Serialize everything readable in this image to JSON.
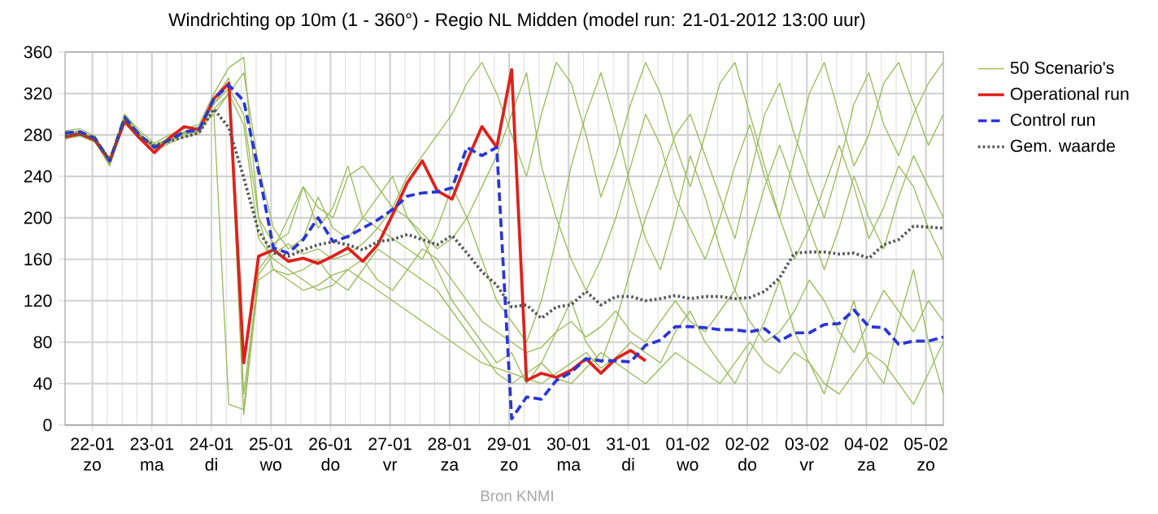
{
  "chart_data": {
    "type": "line",
    "title": "Windrichting op 10m (1 - 360°) - Regio NL Midden (model run: 21-01-2012 13:00 uur)",
    "annotations": [
      "Bron KNMI"
    ],
    "legend": "right",
    "grid": true,
    "marker": "none",
    "x": [
      "2012-01-21T13:00",
      "2012-01-21T19:00",
      "2012-01-22T01:00",
      "2012-01-22T07:00",
      "2012-01-22T13:00",
      "2012-01-22T19:00",
      "2012-01-23T01:00",
      "2012-01-23T07:00",
      "2012-01-23T13:00",
      "2012-01-23T19:00",
      "2012-01-24T01:00",
      "2012-01-24T07:00",
      "2012-01-24T13:00",
      "2012-01-24T19:00",
      "2012-01-25T01:00",
      "2012-01-25T07:00",
      "2012-01-25T13:00",
      "2012-01-25T19:00",
      "2012-01-26T01:00",
      "2012-01-26T07:00",
      "2012-01-26T13:00",
      "2012-01-26T19:00",
      "2012-01-27T01:00",
      "2012-01-27T07:00",
      "2012-01-27T13:00",
      "2012-01-27T19:00",
      "2012-01-28T01:00",
      "2012-01-28T07:00",
      "2012-01-28T13:00",
      "2012-01-28T19:00",
      "2012-01-29T01:00",
      "2012-01-29T07:00",
      "2012-01-29T13:00",
      "2012-01-29T19:00",
      "2012-01-30T01:00",
      "2012-01-30T07:00",
      "2012-01-30T13:00",
      "2012-01-30T19:00",
      "2012-01-31T01:00",
      "2012-01-31T07:00",
      "2012-01-31T13:00",
      "2012-01-31T19:00",
      "2012-02-01T01:00",
      "2012-02-01T07:00",
      "2012-02-01T13:00",
      "2012-02-01T19:00",
      "2012-02-02T01:00",
      "2012-02-02T07:00",
      "2012-02-02T13:00",
      "2012-02-02T19:00",
      "2012-02-03T01:00",
      "2012-02-03T07:00",
      "2012-02-03T13:00",
      "2012-02-03T19:00",
      "2012-02-04T01:00",
      "2012-02-04T07:00",
      "2012-02-04T13:00",
      "2012-02-04T19:00",
      "2012-02-05T01:00",
      "2012-02-05T07:00"
    ],
    "xlim": [
      "2012-01-21T13:00",
      "2012-02-05T07:00"
    ],
    "xticks": [
      {
        "value": "2012-01-22",
        "label": "22-01 zo"
      },
      {
        "value": "2012-01-23",
        "label": "23-01 ma"
      },
      {
        "value": "2012-01-24",
        "label": "24-01 di"
      },
      {
        "value": "2012-01-25",
        "label": "25-01 wo"
      },
      {
        "value": "2012-01-26",
        "label": "26-01 do"
      },
      {
        "value": "2012-01-27",
        "label": "27-01 vr"
      },
      {
        "value": "2012-01-28",
        "label": "28-01 za"
      },
      {
        "value": "2012-01-29",
        "label": "29-01 zo"
      },
      {
        "value": "2012-01-30",
        "label": "30-01 ma"
      },
      {
        "value": "2012-01-31",
        "label": "31-01 di"
      },
      {
        "value": "2012-02-01",
        "label": "01-02 wo"
      },
      {
        "value": "2012-02-02",
        "label": "02-02 do"
      },
      {
        "value": "2012-02-03",
        "label": "03-02 vr"
      },
      {
        "value": "2012-02-04",
        "label": "04-02 za"
      },
      {
        "value": "2012-02-05",
        "label": "05-02 zo"
      }
    ],
    "ylim": [
      0,
      360
    ],
    "yticks": [
      0,
      40,
      80,
      120,
      160,
      200,
      240,
      280,
      320,
      360
    ],
    "series": [
      {
        "name": "50 Scenario's",
        "color": "#9bbb59",
        "line_style": "solid",
        "values": [
          280,
          283,
          276,
          252,
          300,
          280,
          268,
          278,
          283,
          288,
          300,
          20,
          15,
          150,
          170,
          200,
          230,
          190,
          210,
          250,
          200,
          220,
          240,
          200,
          180,
          150,
          120,
          100,
          80,
          60,
          70,
          40,
          60,
          90,
          120,
          80,
          60,
          100,
          150,
          200,
          240,
          280,
          300,
          260,
          220,
          180,
          240,
          300,
          330,
          280,
          240,
          200,
          250,
          310,
          340,
          290,
          260,
          300,
          330,
          350
        ]
      },
      {
        "color": "#9bbb59",
        "line_style": "solid",
        "values": [
          278,
          280,
          274,
          250,
          294,
          282,
          266,
          274,
          280,
          283,
          310,
          330,
          10,
          140,
          150,
          140,
          130,
          135,
          145,
          150,
          140,
          130,
          120,
          110,
          100,
          90,
          80,
          70,
          60,
          55,
          50,
          45,
          40,
          50,
          60,
          70,
          55,
          65,
          80,
          70,
          60,
          90,
          110,
          80,
          60,
          40,
          70,
          100,
          140,
          90,
          60,
          30,
          80,
          120,
          60,
          40,
          100,
          150,
          80,
          30
        ]
      },
      {
        "color": "#9bbb59",
        "line_style": "solid",
        "values": [
          284,
          286,
          279,
          256,
          300,
          284,
          272,
          280,
          286,
          290,
          320,
          345,
          355,
          200,
          175,
          185,
          230,
          210,
          200,
          240,
          250,
          230,
          210,
          240,
          260,
          280,
          300,
          330,
          350,
          320,
          280,
          240,
          300,
          350,
          330,
          280,
          220,
          260,
          310,
          350,
          320,
          270,
          230,
          280,
          330,
          350,
          300,
          250,
          200,
          260,
          320,
          350,
          300,
          250,
          280,
          330,
          350,
          310,
          270,
          300
        ]
      },
      {
        "color": "#9bbb59",
        "line_style": "solid",
        "values": [
          276,
          279,
          273,
          252,
          292,
          276,
          264,
          272,
          278,
          281,
          305,
          320,
          290,
          180,
          160,
          150,
          140,
          130,
          135,
          150,
          160,
          140,
          130,
          150,
          170,
          160,
          140,
          120,
          100,
          90,
          80,
          70,
          75,
          90,
          100,
          85,
          95,
          110,
          90,
          80,
          100,
          120,
          100,
          90,
          110,
          130,
          100,
          80,
          90,
          110,
          140,
          120,
          90,
          70,
          100,
          130,
          110,
          90,
          120,
          100
        ]
      },
      {
        "color": "#9bbb59",
        "line_style": "solid",
        "values": [
          282,
          284,
          277,
          257,
          298,
          281,
          270,
          277,
          283,
          287,
          300,
          320,
          340,
          250,
          190,
          170,
          180,
          220,
          190,
          180,
          200,
          190,
          180,
          170,
          160,
          190,
          230,
          200,
          160,
          120,
          100,
          80,
          120,
          180,
          250,
          300,
          340,
          290,
          230,
          180,
          150,
          200,
          260,
          220,
          170,
          130,
          180,
          230,
          270,
          230,
          190,
          150,
          190,
          240,
          200,
          170,
          220,
          260,
          230,
          200
        ]
      },
      {
        "color": "#9bbb59",
        "line_style": "solid",
        "values": [
          279,
          281,
          275,
          255,
          295,
          278,
          267,
          275,
          281,
          284,
          310,
          325,
          300,
          200,
          150,
          145,
          150,
          160,
          140,
          130,
          150,
          170,
          160,
          150,
          140,
          130,
          110,
          90,
          70,
          50,
          40,
          50,
          60,
          45,
          40,
          55,
          70,
          60,
          50,
          40,
          55,
          70,
          60,
          50,
          40,
          60,
          80,
          60,
          50,
          70,
          60,
          40,
          30,
          50,
          70,
          60,
          40,
          20,
          50,
          80
        ]
      },
      {
        "color": "#9bbb59",
        "line_style": "solid",
        "values": [
          281,
          283,
          278,
          253,
          297,
          279,
          269,
          276,
          282,
          286,
          315,
          335,
          30,
          145,
          165,
          175,
          165,
          170,
          160,
          165,
          175,
          190,
          210,
          200,
          185,
          170,
          180,
          200,
          230,
          260,
          300,
          340,
          250,
          200,
          160,
          130,
          160,
          200,
          250,
          300,
          270,
          220,
          190,
          160,
          200,
          250,
          290,
          240,
          200,
          160,
          190,
          230,
          270,
          230,
          180,
          210,
          250,
          230,
          190,
          160
        ]
      },
      {
        "name": "Operational run",
        "color": "#e0201b",
        "line_style": "solid",
        "values": [
          278,
          281,
          275,
          255,
          293,
          277,
          263,
          277,
          288,
          285,
          315,
          330,
          60,
          163,
          169,
          158,
          161,
          156,
          163,
          171,
          158,
          174,
          203,
          234,
          255,
          226,
          218,
          255,
          288,
          268,
          343,
          43,
          50,
          46,
          53,
          64,
          50,
          64,
          72,
          62,
          null,
          null,
          null,
          null,
          null,
          null,
          null,
          null,
          null,
          null,
          null,
          null,
          null,
          null,
          null,
          null,
          null,
          null,
          null,
          null
        ]
      },
      {
        "name": "Control run",
        "color": "#2a36d6",
        "line_style": "dashed",
        "values": [
          282,
          283,
          277,
          255,
          297,
          280,
          268,
          275,
          283,
          285,
          315,
          328,
          313,
          245,
          171,
          166,
          179,
          200,
          177,
          182,
          190,
          198,
          208,
          221,
          224,
          225,
          229,
          268,
          260,
          268,
          6,
          27,
          25,
          43,
          51,
          64,
          62,
          62,
          61,
          77,
          82,
          95,
          95,
          94,
          92,
          92,
          90,
          93,
          81,
          89,
          89,
          97,
          98,
          111,
          95,
          94,
          78,
          81,
          81,
          85
        ]
      },
      {
        "name": "Gem. waarde",
        "color": "#555555",
        "line_style": "dotted",
        "values": [
          279,
          281,
          276,
          256,
          295,
          279,
          270,
          274,
          278,
          282,
          305,
          287,
          239,
          187,
          166,
          163,
          169,
          174,
          177,
          174,
          169,
          177,
          179,
          184,
          179,
          174,
          183,
          166,
          148,
          135,
          114,
          116,
          103,
          114,
          116,
          129,
          116,
          124,
          124,
          120,
          122,
          125,
          122,
          124,
          124,
          122,
          123,
          129,
          142,
          166,
          167,
          167,
          165,
          166,
          161,
          174,
          179,
          192,
          191,
          190
        ]
      }
    ]
  }
}
